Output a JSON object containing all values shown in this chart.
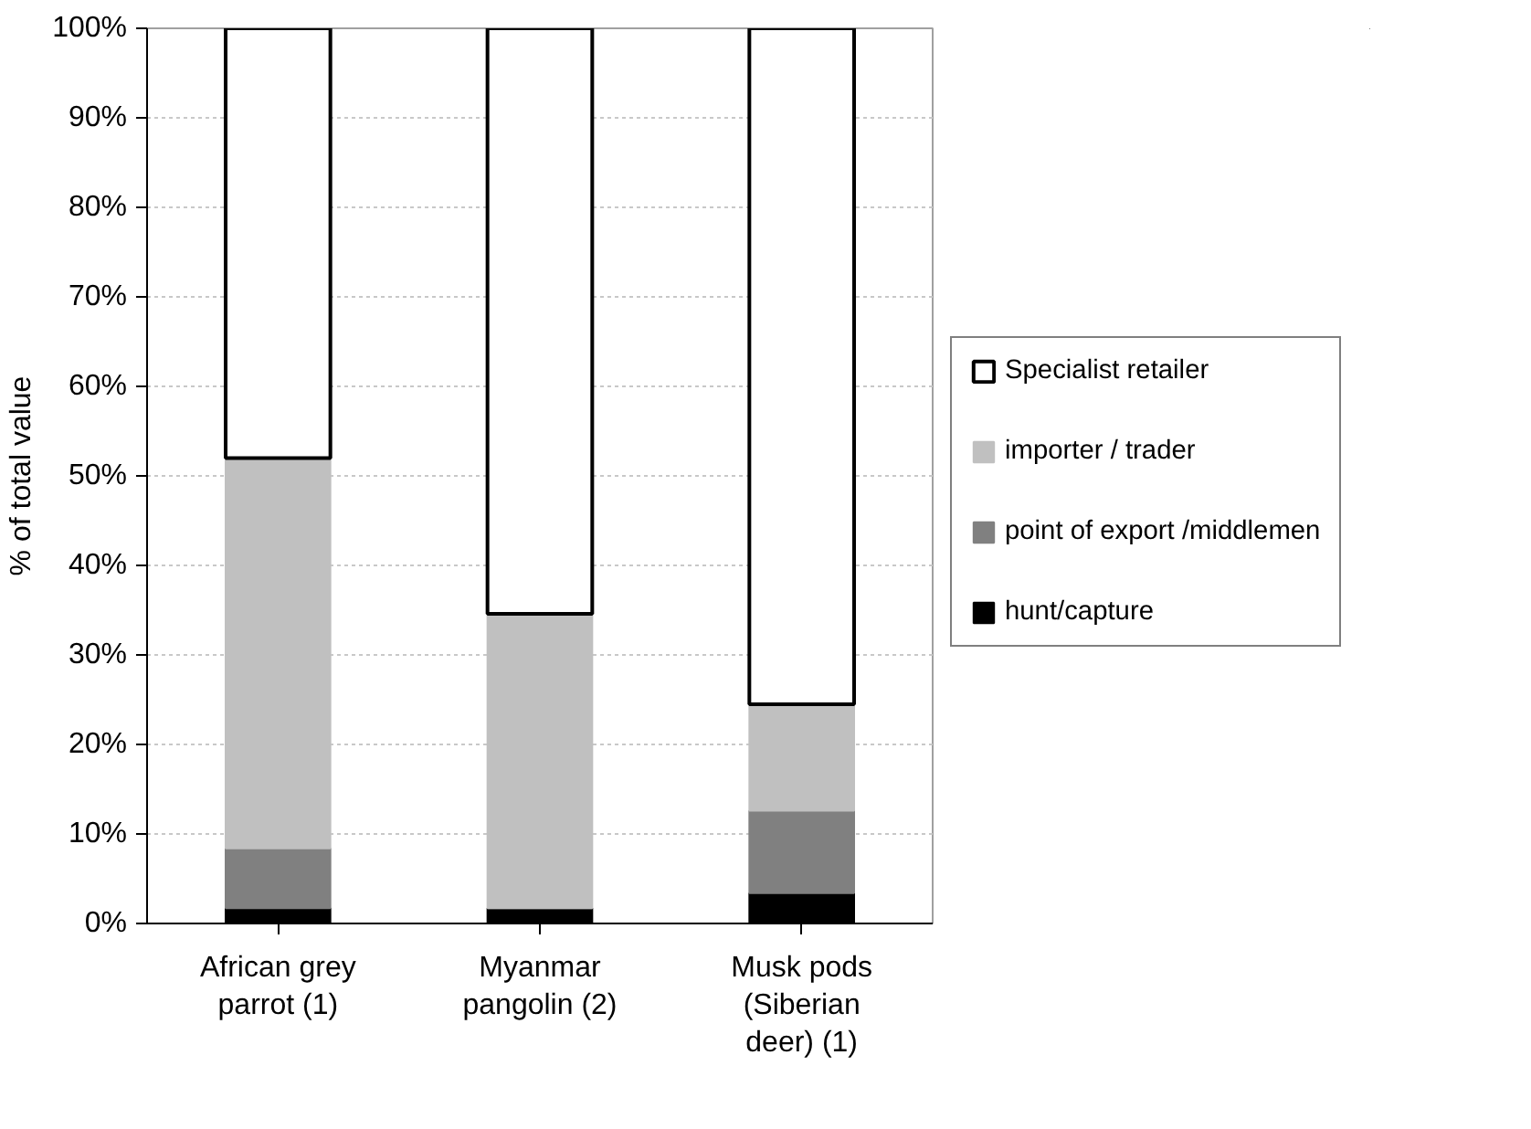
{
  "chart_data": {
    "type": "bar",
    "stacked": true,
    "ylabel": "% of total value",
    "categories": [
      "African grey parrot (1)",
      "Myanmar pangolin (2)",
      "Musk pods (Siberian deer) (1)"
    ],
    "series": [
      {
        "name": "hunt/capture",
        "color": "#000000",
        "values": [
          1.7,
          1.7,
          3.4
        ]
      },
      {
        "name": "point of export /middlemen",
        "color": "#808080",
        "values": [
          6.7,
          0,
          9.2
        ]
      },
      {
        "name": "importer / trader",
        "color": "#c0c0c0",
        "values": [
          43.6,
          32.9,
          11.9
        ]
      },
      {
        "name": "Specialist retailer",
        "color": "#ffffff",
        "values": [
          48,
          65.4,
          75.5
        ]
      }
    ],
    "ylim": [
      0,
      100
    ],
    "yticks": [
      {
        "value": 0,
        "label": "0%"
      },
      {
        "value": 10,
        "label": "10%"
      },
      {
        "value": 20,
        "label": "20%"
      },
      {
        "value": 30,
        "label": "30%"
      },
      {
        "value": 40,
        "label": "40%"
      },
      {
        "value": 50,
        "label": "50%"
      },
      {
        "value": 60,
        "label": "60%"
      },
      {
        "value": 70,
        "label": "70%"
      },
      {
        "value": 80,
        "label": "80%"
      },
      {
        "value": 90,
        "label": "90%"
      },
      {
        "value": 100,
        "label": "100%"
      }
    ],
    "grid": "y",
    "legend": "right"
  }
}
